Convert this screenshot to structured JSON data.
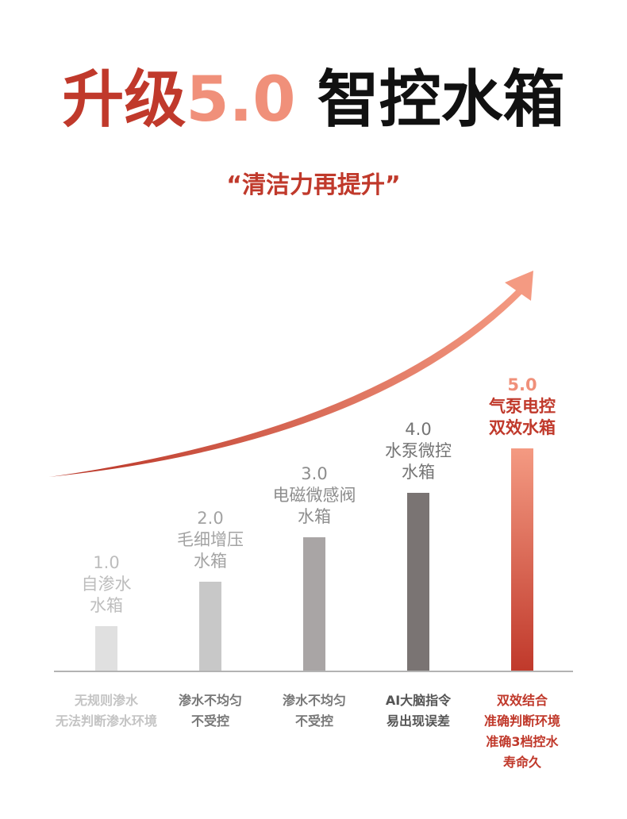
{
  "header": {
    "title_part1": "升级",
    "title_part2": "5.0",
    "title_part3": "智控水箱",
    "subtitle": "“清洁力再提升”"
  },
  "colors": {
    "accent_dark": "#c0392b",
    "accent_light": "#f0907a",
    "bar_grays": [
      "#e0e0e0",
      "#c8c8c8",
      "#a9a5a5",
      "#7a7473"
    ]
  },
  "chart_data": {
    "type": "bar",
    "title": "",
    "xlabel": "",
    "ylabel": "",
    "ylim": [
      0,
      5
    ],
    "grid": false,
    "legend": "none",
    "categories": [
      "1.0",
      "2.0",
      "3.0",
      "4.0",
      "5.0"
    ],
    "values": [
      1,
      2,
      3,
      4,
      5
    ],
    "bar_labels": [
      [
        "1.0",
        "自渗水",
        "水箱"
      ],
      [
        "2.0",
        "毛细增压",
        "水箱"
      ],
      [
        "3.0",
        "电磁微感阀",
        "水箱"
      ],
      [
        "4.0",
        "水泵微控",
        "水箱"
      ],
      [
        "5.0",
        "气泵电控",
        "双效水箱"
      ]
    ],
    "descriptions": [
      [
        "无规则渗水",
        "无法判断渗水环境"
      ],
      [
        "渗水不均匀",
        "不受控"
      ],
      [
        "渗水不均匀",
        "不受控"
      ],
      [
        "AI大脑指令",
        "易出现误差"
      ],
      [
        "双效结合",
        "准确判断环境",
        "准确3档控水",
        "寿命久"
      ]
    ],
    "highlight_index": 4,
    "trend_arrow": "rising"
  }
}
